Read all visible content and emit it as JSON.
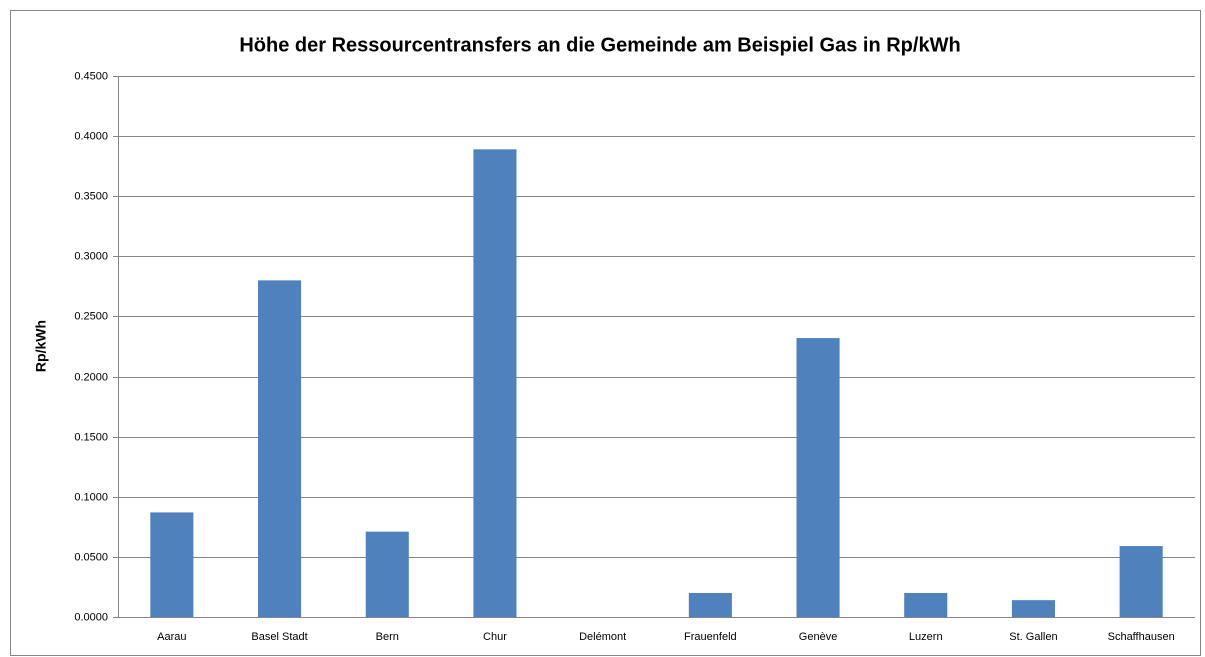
{
  "chart_data": {
    "type": "bar",
    "title": "Höhe der Ressourcentransfers an die Gemeinde am Beispiel Gas in Rp/kWh",
    "y_label": "Rp/kWh",
    "categories": [
      "Aarau",
      "Basel Stadt",
      "Bern",
      "Chur",
      "Delémont",
      "Frauenfeld",
      "Genève",
      "Luzern",
      "St. Gallen",
      "Schaffhausen"
    ],
    "values": [
      0.087,
      0.28,
      0.071,
      0.389,
      0,
      0.02,
      0.232,
      0.02,
      0.014,
      0.059
    ],
    "color": "#4f81bd",
    "ylim": [
      0,
      0.45
    ],
    "yticks": [
      {
        "value": 0,
        "label": "0.0000"
      },
      {
        "value": 0.05,
        "label": "0.0500"
      },
      {
        "value": 0.1,
        "label": "0.1000"
      },
      {
        "value": 0.15,
        "label": "0.1500"
      },
      {
        "value": 0.2,
        "label": "0.2000"
      },
      {
        "value": 0.25,
        "label": "0.2500"
      },
      {
        "value": 0.3,
        "label": "0.3000"
      },
      {
        "value": 0.35,
        "label": "0.3500"
      },
      {
        "value": 0.4,
        "label": "0.4000"
      },
      {
        "value": 0.45,
        "label": "0.4500"
      }
    ],
    "grid": true
  }
}
